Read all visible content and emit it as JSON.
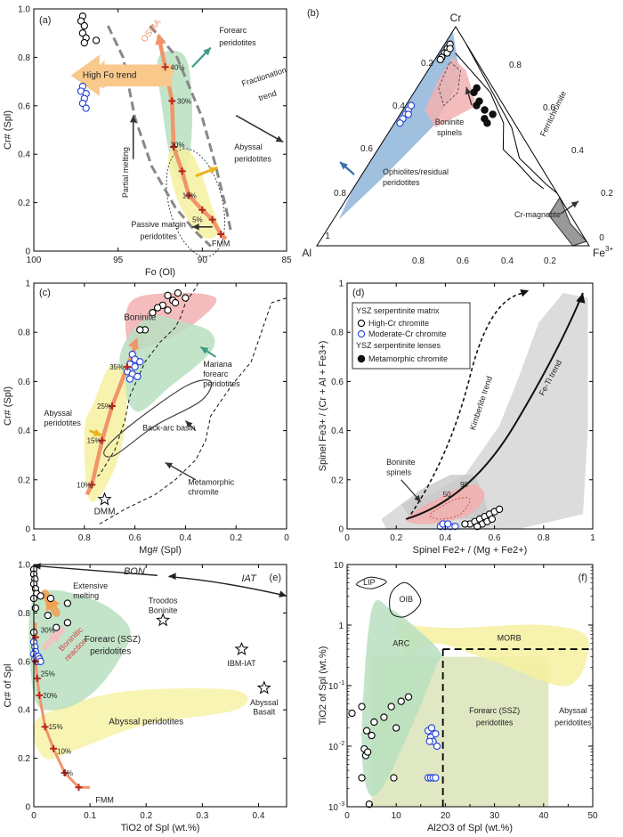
{
  "chart_data": [
    {
      "type": "scatter",
      "panel_label": "(a)",
      "xlabel": "Fo (Ol)",
      "ylabel": "Cr# (Spl)",
      "xlim": [
        100,
        85
      ],
      "ylim": [
        0,
        1.0
      ],
      "x_ticks": [
        100,
        95,
        90,
        85
      ],
      "y_ticks": [
        0,
        0.2,
        0.4,
        0.6,
        0.8,
        1.0
      ],
      "series": [
        {
          "name": "High-Cr chromite",
          "marker": "open-circle-black",
          "points": [
            [
              97.1,
              0.97
            ],
            [
              97.2,
              0.95
            ],
            [
              97.0,
              0.93
            ],
            [
              97.1,
              0.9
            ],
            [
              96.9,
              0.88
            ],
            [
              96.3,
              0.87
            ],
            [
              97.0,
              0.86
            ]
          ]
        },
        {
          "name": "Moderate-Cr chromite",
          "marker": "open-circle-blue",
          "points": [
            [
              97.1,
              0.68
            ],
            [
              97.2,
              0.66
            ],
            [
              96.9,
              0.65
            ],
            [
              97.0,
              0.63
            ],
            [
              97.1,
              0.61
            ],
            [
              96.9,
              0.59
            ]
          ]
        },
        {
          "name": "Melting model",
          "marker": "red-plus",
          "points": [
            [
              88.9,
              0.07
            ],
            [
              89.4,
              0.13
            ],
            [
              90.0,
              0.17
            ],
            [
              90.8,
              0.23
            ],
            [
              91.2,
              0.33
            ],
            [
              91.7,
              0.43
            ],
            [
              91.8,
              0.62
            ],
            [
              92.2,
              0.76
            ]
          ]
        }
      ],
      "tick_annotations": [
        "40%",
        "30%",
        "20%",
        "10%",
        "5%"
      ],
      "annotations": [
        "OSMA",
        "High Fo trend",
        "Forearc peridotites",
        "Partial melting",
        "Fractionation trend",
        "Abyssal peridotites",
        "Passive margin peridotites",
        "FMM"
      ]
    },
    {
      "type": "ternary",
      "panel_label": "(b)",
      "vertices": [
        "Cr",
        "Al",
        "Fe3+"
      ],
      "tick_labels": [
        "0.2",
        "0.4",
        "0.6",
        "0.8",
        "1",
        "0.8",
        "0.6",
        "0.4",
        "0.2",
        "0"
      ],
      "series": [
        {
          "name": "High-Cr chromite",
          "marker": "open-circle-black",
          "points_cr_al_fe": [
            [
              0.9,
              0.08,
              0.02
            ],
            [
              0.92,
              0.06,
              0.02
            ],
            [
              0.88,
              0.1,
              0.02
            ],
            [
              0.86,
              0.12,
              0.02
            ],
            [
              0.88,
              0.09,
              0.03
            ],
            [
              0.85,
              0.13,
              0.02
            ],
            [
              0.9,
              0.07,
              0.03
            ]
          ]
        },
        {
          "name": "Moderate-Cr chromite",
          "marker": "open-circle-blue",
          "points_cr_al_fe": [
            [
              0.62,
              0.36,
              0.02
            ],
            [
              0.6,
              0.38,
              0.02
            ],
            [
              0.58,
              0.4,
              0.02
            ],
            [
              0.64,
              0.34,
              0.02
            ],
            [
              0.56,
              0.42,
              0.02
            ],
            [
              0.6,
              0.37,
              0.03
            ]
          ]
        },
        {
          "name": "Metamorphic chromite",
          "marker": "filled-circle-black",
          "points_cr_al_fe": [
            [
              0.64,
              0.1,
              0.26
            ],
            [
              0.62,
              0.08,
              0.3
            ],
            [
              0.58,
              0.1,
              0.32
            ],
            [
              0.6,
              0.06,
              0.34
            ],
            [
              0.66,
              0.08,
              0.26
            ],
            [
              0.56,
              0.1,
              0.34
            ],
            [
              0.7,
              0.08,
              0.22
            ],
            [
              0.72,
              0.06,
              0.22
            ]
          ]
        }
      ],
      "annotations": [
        "Boninite spinels",
        "Ferritchromite",
        "Ophiolites/residual peridotites",
        "Cr-magnetite"
      ]
    },
    {
      "type": "scatter",
      "panel_label": "(c)",
      "xlabel": "Mg# (Spl)",
      "ylabel": "Cr# (Spl)",
      "xlim": [
        1,
        0
      ],
      "ylim": [
        0,
        1
      ],
      "x_ticks": [
        1,
        0.8,
        0.6,
        0.4,
        0.2,
        0
      ],
      "y_ticks": [
        0,
        0.2,
        0.4,
        0.6,
        0.8,
        1
      ],
      "series": [
        {
          "name": "High-Cr chromite",
          "marker": "open-circle-black",
          "points": [
            [
              0.47,
              0.95
            ],
            [
              0.43,
              0.96
            ],
            [
              0.4,
              0.94
            ],
            [
              0.45,
              0.93
            ],
            [
              0.49,
              0.91
            ],
            [
              0.51,
              0.9
            ],
            [
              0.47,
              0.89
            ],
            [
              0.44,
              0.92
            ],
            [
              0.53,
              0.88
            ],
            [
              0.56,
              0.81
            ],
            [
              0.58,
              0.81
            ]
          ]
        },
        {
          "name": "Moderate-Cr chromite",
          "marker": "open-circle-blue",
          "points": [
            [
              0.61,
              0.71
            ],
            [
              0.6,
              0.69
            ],
            [
              0.58,
              0.68
            ],
            [
              0.62,
              0.67
            ],
            [
              0.6,
              0.66
            ],
            [
              0.63,
              0.64
            ],
            [
              0.61,
              0.63
            ],
            [
              0.59,
              0.62
            ],
            [
              0.62,
              0.61
            ]
          ]
        },
        {
          "name": "Melting model",
          "marker": "red-plus",
          "points": [
            [
              0.77,
              0.18
            ],
            [
              0.73,
              0.36
            ],
            [
              0.69,
              0.5
            ],
            [
              0.63,
              0.66
            ]
          ]
        }
      ],
      "tick_annotations": [
        "35%",
        "25%",
        "15%",
        "10%"
      ],
      "annotations": [
        "Boninite",
        "Mariana forearc peridotites",
        "Abyssal peridotites",
        "Back-arc basin",
        "Metamorphic chromite",
        "DMM"
      ]
    },
    {
      "type": "scatter",
      "panel_label": "(d)",
      "xlabel": "Spinel Fe2+ / (Mg + Fe2+)",
      "ylabel": "Spinel Fe3+ / (Cr + Al + Fe3+)",
      "xlim": [
        0,
        1
      ],
      "ylim": [
        0,
        1
      ],
      "x_ticks": [
        0,
        0.2,
        0.4,
        0.6,
        0.8,
        1
      ],
      "y_ticks": [
        0,
        0.2,
        0.4,
        0.6,
        0.8,
        1
      ],
      "legend": {
        "groups": [
          {
            "title": "YSZ serpentinite matrix",
            "items": [
              "High-Cr chromite",
              "Moderate-Cr chromite"
            ]
          },
          {
            "title": "YSZ serpentinite lenses",
            "items": [
              "Metamorphic chromite"
            ]
          }
        ],
        "placement": "top-left"
      },
      "series": [
        {
          "name": "High-Cr chromite",
          "marker": "open-circle-black",
          "points": [
            [
              0.5,
              0.02
            ],
            [
              0.52,
              0.03
            ],
            [
              0.54,
              0.04
            ],
            [
              0.56,
              0.05
            ],
            [
              0.58,
              0.06
            ],
            [
              0.6,
              0.07
            ],
            [
              0.62,
              0.08
            ],
            [
              0.55,
              0.02
            ],
            [
              0.57,
              0.03
            ],
            [
              0.53,
              0.01
            ],
            [
              0.59,
              0.04
            ],
            [
              0.48,
              0.02
            ]
          ]
        },
        {
          "name": "Moderate-Cr chromite",
          "marker": "open-circle-blue",
          "points": [
            [
              0.38,
              0.01
            ],
            [
              0.4,
              0.01
            ],
            [
              0.42,
              0.01
            ],
            [
              0.44,
              0.01
            ],
            [
              0.39,
              0.02
            ],
            [
              0.41,
              0.02
            ]
          ]
        }
      ],
      "annotations": [
        "Kimberlite trend",
        "Fe-Ti trend",
        "Boninite spinels",
        "90",
        "50"
      ]
    },
    {
      "type": "scatter",
      "panel_label": "(e)",
      "xlabel": "TiO2 of Spl (wt.%)",
      "ylabel": "Cr# of Spl",
      "xlim": [
        0,
        0.45
      ],
      "ylim": [
        0,
        1.0
      ],
      "x_ticks": [
        0,
        0.1,
        0.2,
        0.3,
        0.4
      ],
      "y_ticks": [
        0,
        0.2,
        0.4,
        0.6,
        0.8,
        1.0
      ],
      "series": [
        {
          "name": "High-Cr chromite",
          "marker": "open-circle-black",
          "points": [
            [
              0.0,
              0.98
            ],
            [
              0.0,
              0.96
            ],
            [
              0.002,
              0.94
            ],
            [
              0.0,
              0.92
            ],
            [
              0.003,
              0.9
            ],
            [
              0.005,
              0.88
            ],
            [
              0.012,
              0.87
            ],
            [
              0.03,
              0.86
            ],
            [
              0.0,
              0.86
            ],
            [
              0.06,
              0.84
            ],
            [
              0.003,
              0.82
            ],
            [
              0.025,
              0.79
            ],
            [
              0.06,
              0.76
            ],
            [
              0.04,
              0.74
            ],
            [
              0.0,
              0.72
            ]
          ]
        },
        {
          "name": "Moderate-Cr chromite",
          "marker": "open-circle-blue",
          "points": [
            [
              0.0,
              0.68
            ],
            [
              0.002,
              0.66
            ],
            [
              0.003,
              0.64
            ],
            [
              0.0,
              0.63
            ],
            [
              0.004,
              0.62
            ],
            [
              0.002,
              0.61
            ],
            [
              0.006,
              0.6
            ],
            [
              0.008,
              0.62
            ],
            [
              0.01,
              0.61
            ],
            [
              0.012,
              0.6
            ]
          ]
        },
        {
          "name": "Melting model",
          "marker": "red-plus",
          "points": [
            [
              0.003,
              0.7
            ],
            [
              0.003,
              0.6
            ],
            [
              0.006,
              0.53
            ],
            [
              0.01,
              0.46
            ],
            [
              0.02,
              0.33
            ],
            [
              0.035,
              0.24
            ],
            [
              0.055,
              0.14
            ],
            [
              0.08,
              0.08
            ]
          ]
        },
        {
          "name": "Reference",
          "marker": "open-star",
          "points": [
            [
              0.23,
              0.77
            ],
            [
              0.37,
              0.65
            ],
            [
              0.41,
              0.49
            ]
          ]
        }
      ],
      "tick_annotations": [
        "30%",
        "25%",
        "20%",
        "15%",
        "10%",
        "5%"
      ],
      "annotations": [
        "BON",
        "IAT",
        "Extensive melting",
        "Boninitic reaction",
        "Forearc (SSZ) peridotites",
        "Abyssal peridotites",
        "Troodos Boninite",
        "IBM-IAT",
        "Abyssal Basalt",
        "FMM"
      ]
    },
    {
      "type": "scatter",
      "panel_label": "(f)",
      "xlabel": "Al2O3 of Spl (wt.%)",
      "ylabel": "TiO2 of Spl (wt.%)",
      "xlim": [
        0,
        50
      ],
      "ylim": [
        0.001,
        10
      ],
      "yscale": "log",
      "x_ticks": [
        0,
        5,
        10,
        15,
        20,
        25,
        30,
        35,
        40,
        45,
        50
      ],
      "y_ticks": [
        "10",
        "1",
        "10-1",
        "10-2",
        "10-3"
      ],
      "series": [
        {
          "name": "High-Cr chromite",
          "marker": "open-circle-black",
          "points": [
            [
              1.0,
              0.035
            ],
            [
              3.0,
              0.045
            ],
            [
              4.0,
              0.018
            ],
            [
              5.5,
              0.025
            ],
            [
              7.5,
              0.03
            ],
            [
              9.0,
              0.045
            ],
            [
              11.0,
              0.055
            ],
            [
              12.5,
              0.065
            ],
            [
              3.5,
              0.009
            ],
            [
              3.8,
              0.007
            ],
            [
              4.2,
              0.008
            ],
            [
              9.5,
              0.003
            ],
            [
              3.0,
              0.003
            ],
            [
              4.5,
              0.0011
            ],
            [
              10.0,
              0.02
            ],
            [
              5.0,
              0.015
            ]
          ]
        },
        {
          "name": "Moderate-Cr chromite",
          "marker": "open-circle-blue",
          "points": [
            [
              16.5,
              0.018
            ],
            [
              17.0,
              0.014
            ],
            [
              17.5,
              0.012
            ],
            [
              18.0,
              0.016
            ],
            [
              18.3,
              0.01
            ],
            [
              17.2,
              0.02
            ],
            [
              16.8,
              0.012
            ],
            [
              16.5,
              0.003
            ],
            [
              17.0,
              0.003
            ],
            [
              17.5,
              0.003
            ],
            [
              18.0,
              0.003
            ]
          ]
        }
      ],
      "annotations": [
        "LIP",
        "OIB",
        "ARC",
        "MORB",
        "Forearc (SSZ) peridotites",
        "Abyssal peridotites"
      ]
    }
  ]
}
